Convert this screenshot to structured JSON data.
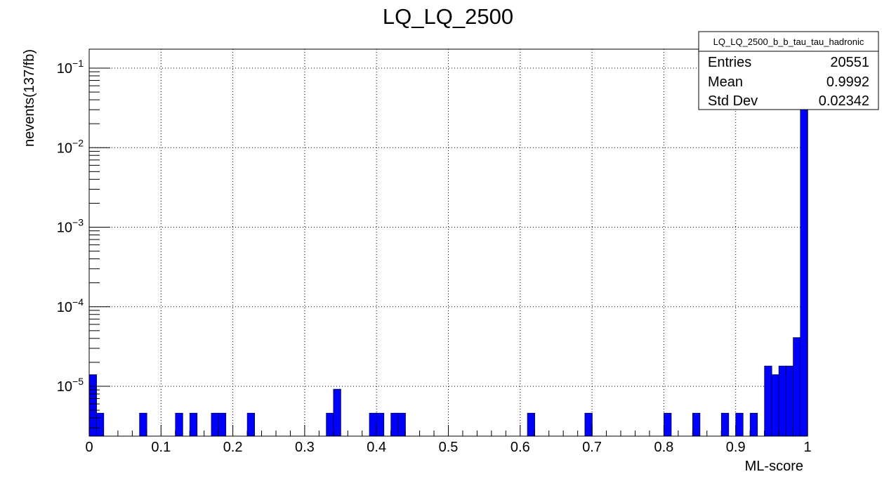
{
  "chart_data": {
    "type": "bar",
    "title": "LQ_LQ_2500",
    "xlabel": "ML-score",
    "ylabel": "nevents(137/fb)",
    "xlim": [
      0,
      1
    ],
    "ylog": true,
    "ylim": [
      2.5e-06,
      0.18
    ],
    "grid": true,
    "nbins": 100,
    "xticks": [
      "0",
      "0.1",
      "0.2",
      "0.3",
      "0.4",
      "0.5",
      "0.6",
      "0.7",
      "0.8",
      "0.9",
      "1"
    ],
    "yticks": [
      {
        "base": "10",
        "exp": "−5",
        "value": 1e-05
      },
      {
        "base": "10",
        "exp": "−4",
        "value": 0.0001
      },
      {
        "base": "10",
        "exp": "−3",
        "value": 0.001
      },
      {
        "base": "10",
        "exp": "−2",
        "value": 0.01
      },
      {
        "base": "10",
        "exp": "−1",
        "value": 0.1
      }
    ],
    "bin_values": {
      "0": 1.4e-05,
      "1": 4.6e-06,
      "7": 4.6e-06,
      "12": 4.6e-06,
      "14": 4.6e-06,
      "17": 4.6e-06,
      "18": 4.6e-06,
      "22": 4.6e-06,
      "33": 4.6e-06,
      "34": 9.2e-06,
      "39": 4.6e-06,
      "40": 4.6e-06,
      "42": 4.6e-06,
      "43": 4.6e-06,
      "61": 4.6e-06,
      "69": 4.6e-06,
      "80": 4.6e-06,
      "84": 4.6e-06,
      "88": 4.6e-06,
      "90": 4.6e-06,
      "92": 4.6e-06,
      "94": 1.8e-05,
      "95": 1.4e-05,
      "96": 1.8e-05,
      "97": 1.8e-05,
      "98": 4.1e-05,
      "99": 0.18
    },
    "fill_color": "#0000ff"
  },
  "stats": {
    "name": "LQ_LQ_2500_b_b_tau_tau_hadronic",
    "rows": [
      {
        "label": "Entries",
        "value": "20551"
      },
      {
        "label": "Mean",
        "value": "0.9992"
      },
      {
        "label": "Std Dev",
        "value": "0.02342"
      }
    ]
  }
}
